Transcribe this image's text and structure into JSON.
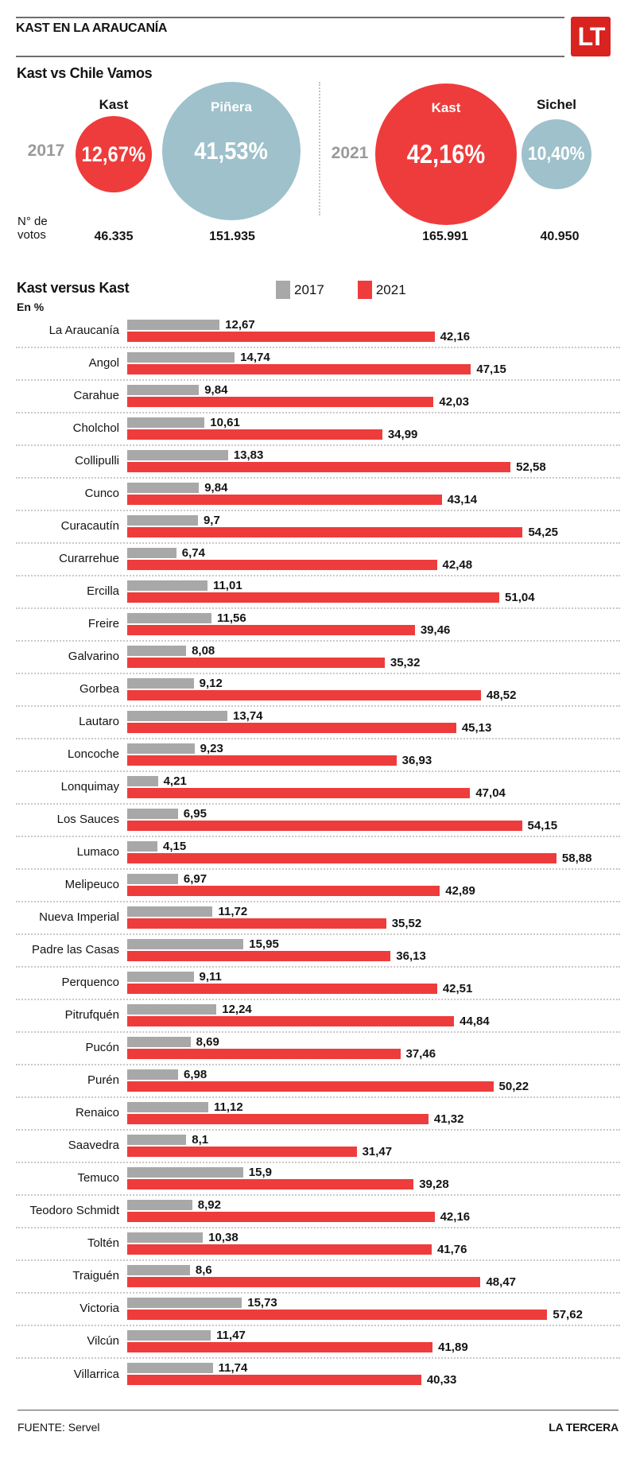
{
  "header": {
    "title": "KAST EN LA ARAUCANÍA",
    "logo": "LT"
  },
  "colors": {
    "accent_red": "#ee3c3c",
    "bubble_blue": "#9ec1cb",
    "bar_gray": "#a8a8a8",
    "logo_red": "#d8231f",
    "year_gray": "#9a9a9a"
  },
  "chart_data": [
    {
      "type": "bubble",
      "title": "Kast vs Chile Vamos",
      "votes_label": [
        "N° de",
        "votos"
      ],
      "groups": [
        {
          "year": "2017",
          "bubbles": [
            {
              "name": "Kast",
              "value_pct": 12.67,
              "label": "12,67%",
              "votes": "46.335",
              "color": "#ee3c3c"
            },
            {
              "name": "Piñera",
              "value_pct": 41.53,
              "label": "41,53%",
              "votes": "151.935",
              "color": "#9ec1cb"
            }
          ]
        },
        {
          "year": "2021",
          "bubbles": [
            {
              "name": "Kast",
              "value_pct": 42.16,
              "label": "42,16%",
              "votes": "165.991",
              "color": "#ee3c3c"
            },
            {
              "name": "Sichel",
              "value_pct": 10.4,
              "label": "10,40%",
              "votes": "40.950",
              "color": "#9ec1cb"
            }
          ]
        }
      ]
    },
    {
      "type": "bar",
      "orientation": "horizontal",
      "title": "Kast versus Kast",
      "subtitle": "En %",
      "unit": "%",
      "xlim": [
        0,
        62
      ],
      "grid": false,
      "legend_position": "top",
      "categories": [
        "La Araucanía",
        "Angol",
        "Carahue",
        "Cholchol",
        "Collipulli",
        "Cunco",
        "Curacautín",
        "Curarrehue",
        "Ercilla",
        "Freire",
        "Galvarino",
        "Gorbea",
        "Lautaro",
        "Loncoche",
        "Lonquimay",
        "Los Sauces",
        "Lumaco",
        "Melipeuco",
        "Nueva Imperial",
        "Padre las Casas",
        "Perquenco",
        "Pitrufquén",
        "Pucón",
        "Purén",
        "Renaico",
        "Saavedra",
        "Temuco",
        "Teodoro Schmidt",
        "Toltén",
        "Traiguén",
        "Victoria",
        "Vilcún",
        "Villarrica"
      ],
      "series": [
        {
          "name": "2017",
          "color": "#a8a8a8",
          "values": [
            12.67,
            14.74,
            9.84,
            10.61,
            13.83,
            9.84,
            9.7,
            6.74,
            11.01,
            11.56,
            8.08,
            9.12,
            13.74,
            9.23,
            4.21,
            6.95,
            4.15,
            6.97,
            11.72,
            15.95,
            9.11,
            12.24,
            8.69,
            6.98,
            11.12,
            8.1,
            15.9,
            8.92,
            10.38,
            8.6,
            15.73,
            11.47,
            11.74
          ]
        },
        {
          "name": "2021",
          "color": "#ee3c3c",
          "values": [
            42.16,
            47.15,
            42.03,
            34.99,
            52.58,
            43.14,
            54.25,
            42.48,
            51.04,
            39.46,
            35.32,
            48.52,
            45.13,
            36.93,
            47.04,
            54.15,
            58.88,
            42.89,
            35.52,
            36.13,
            42.51,
            44.84,
            37.46,
            50.22,
            41.32,
            31.47,
            39.28,
            42.16,
            41.76,
            48.47,
            57.62,
            41.89,
            40.33
          ]
        }
      ]
    }
  ],
  "footer": {
    "source": "FUENTE: Servel",
    "credit": "LA TERCERA"
  }
}
